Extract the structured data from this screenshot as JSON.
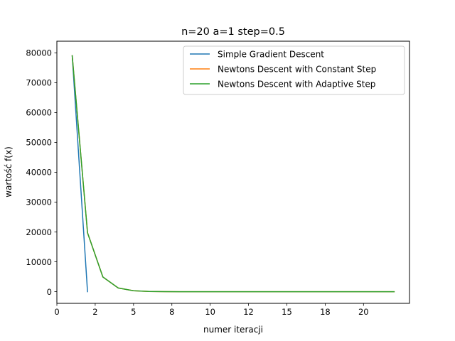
{
  "chart_data": {
    "type": "line",
    "title": "n=20 a=1 step=0.5",
    "xlabel": "numer iteracji",
    "ylabel": "wartość f(x)",
    "xlim": [
      0,
      23
    ],
    "ylim": [
      -3900,
      83900
    ],
    "x_ticks": [
      0,
      2.5,
      5,
      7.5,
      10,
      12.5,
      15,
      17.5,
      20
    ],
    "x_tick_labels": [
      "0",
      "2",
      "5",
      "8",
      "10",
      "12",
      "15",
      "18",
      "20"
    ],
    "y_ticks": [
      0,
      10000,
      20000,
      30000,
      40000,
      50000,
      60000,
      70000,
      80000
    ],
    "y_tick_labels": [
      "0",
      "10000",
      "20000",
      "30000",
      "40000",
      "50000",
      "60000",
      "70000",
      "80000"
    ],
    "grid": false,
    "legend": "top-right",
    "series": [
      {
        "name": "Simple Gradient Descent",
        "color": "#1f77b4",
        "x": [
          1,
          2
        ],
        "y": [
          79000,
          0
        ]
      },
      {
        "name": "Newtons Descent with Constant Step",
        "color": "#ff7f0e",
        "x": [
          1,
          2,
          3,
          4,
          5,
          6,
          7,
          8,
          9,
          10,
          11,
          12,
          13,
          14,
          15,
          16,
          17,
          18,
          19,
          20,
          21,
          22
        ],
        "y": [
          79000,
          19750,
          4938,
          1234,
          309,
          77,
          19,
          5,
          1,
          0,
          0,
          0,
          0,
          0,
          0,
          0,
          0,
          0,
          0,
          0,
          0,
          0
        ]
      },
      {
        "name": "Newtons Descent with Adaptive Step",
        "color": "#2ca02c",
        "x": [
          1,
          2,
          3,
          4,
          5,
          6,
          7,
          8,
          9,
          10,
          11,
          12,
          13,
          14,
          15,
          16,
          17,
          18,
          19,
          20,
          21,
          22
        ],
        "y": [
          79000,
          19750,
          4938,
          1234,
          309,
          77,
          19,
          5,
          1,
          0,
          0,
          0,
          0,
          0,
          0,
          0,
          0,
          0,
          0,
          0,
          0,
          0
        ]
      }
    ]
  }
}
